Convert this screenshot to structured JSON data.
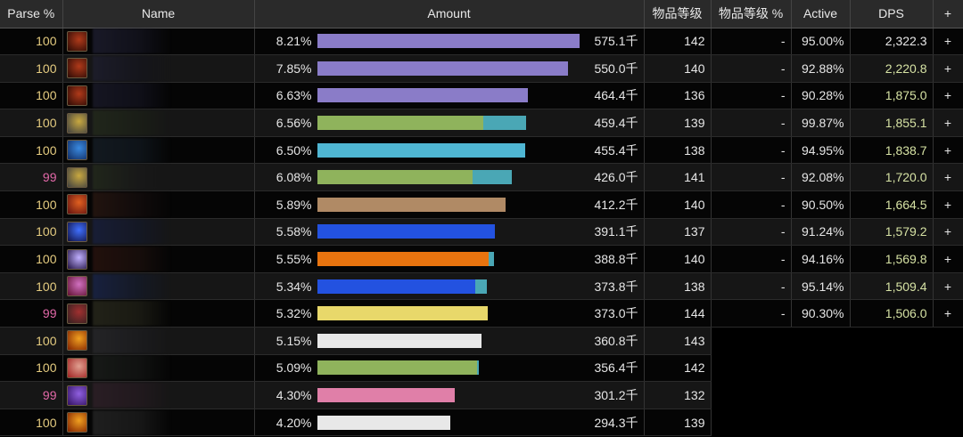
{
  "headers": [
    "Parse %",
    "Name",
    "Amount",
    "物品等级",
    "物品等级 %",
    "Active",
    "DPS",
    "+"
  ],
  "colors": {
    "parse100": "#e5cc80",
    "parse99": "#e268a8",
    "dps": "#d6e2a4"
  },
  "rows": [
    {
      "parse": "100",
      "icon": [
        "#b03a1a",
        "#2a0a05"
      ],
      "name": [
        "#2a2a44",
        "#1a1a2a"
      ],
      "pct": "8.21%",
      "bars": [
        [
          100,
          "#8a7cc8"
        ]
      ],
      "amount": "575.1千",
      "ilvl": "142",
      "ilvl_pct": "-",
      "active": "95.00%",
      "dps": "2,322.3",
      "plus": "+"
    },
    {
      "parse": "100",
      "icon": [
        "#b03a1a",
        "#2a0a05"
      ],
      "name": [
        "#22223a",
        "#151520"
      ],
      "pct": "7.85%",
      "bars": [
        [
          95.6,
          "#8a7cc8"
        ]
      ],
      "amount": "550.0千",
      "ilvl": "140",
      "ilvl_pct": "-",
      "active": "92.88%",
      "dps": "2,220.8",
      "plus": "+"
    },
    {
      "parse": "100",
      "icon": [
        "#b03a1a",
        "#2a0a05"
      ],
      "name": [
        "#24243a",
        "#181828"
      ],
      "pct": "6.63%",
      "bars": [
        [
          80.6,
          "#8a7cc8"
        ]
      ],
      "amount": "464.4千",
      "ilvl": "136",
      "ilvl_pct": "-",
      "active": "90.28%",
      "dps": "1,875.0",
      "plus": "+"
    },
    {
      "parse": "100",
      "icon": [
        "#c8a840",
        "#404040"
      ],
      "name": [
        "#2a3420",
        "#1e2418"
      ],
      "pct": "6.56%",
      "bars": [
        [
          63.6,
          "#8fb35c"
        ],
        [
          16.3,
          "#4aa7b5"
        ]
      ],
      "amount": "459.4千",
      "ilvl": "139",
      "ilvl_pct": "-",
      "active": "99.87%",
      "dps": "1,855.1",
      "plus": "+"
    },
    {
      "parse": "100",
      "icon": [
        "#3a8ae0",
        "#102a60"
      ],
      "name": [
        "#1e2a36",
        "#16202a"
      ],
      "pct": "6.50%",
      "bars": [
        [
          79.3,
          "#4fb6d3"
        ]
      ],
      "amount": "455.4千",
      "ilvl": "138",
      "ilvl_pct": "-",
      "active": "94.95%",
      "dps": "1,838.7",
      "plus": "+"
    },
    {
      "parse": "99",
      "icon": [
        "#c8a840",
        "#404040"
      ],
      "name": [
        "#2a3420",
        "#1a1a1a"
      ],
      "pct": "6.08%",
      "bars": [
        [
          59.2,
          "#8fb35c"
        ],
        [
          15,
          "#4aa7b5"
        ]
      ],
      "amount": "426.0千",
      "ilvl": "141",
      "ilvl_pct": "-",
      "active": "92.08%",
      "dps": "1,720.0",
      "plus": "+"
    },
    {
      "parse": "100",
      "icon": [
        "#e06020",
        "#601010"
      ],
      "name": [
        "#3a2018",
        "#1a1010"
      ],
      "pct": "5.89%",
      "bars": [
        [
          71.8,
          "#b08a65"
        ]
      ],
      "amount": "412.2千",
      "ilvl": "140",
      "ilvl_pct": "-",
      "active": "90.50%",
      "dps": "1,664.5",
      "plus": "+"
    },
    {
      "parse": "100",
      "icon": [
        "#4070ff",
        "#101040"
      ],
      "name": [
        "#1a2450",
        "#141a30"
      ],
      "pct": "5.58%",
      "bars": [
        [
          68,
          "#2352e0"
        ]
      ],
      "amount": "391.1千",
      "ilvl": "137",
      "ilvl_pct": "-",
      "active": "91.24%",
      "dps": "1,579.2",
      "plus": "+"
    },
    {
      "parse": "100",
      "icon": [
        "#c0b0ff",
        "#201040"
      ],
      "name": [
        "#3a1a14",
        "#241410"
      ],
      "pct": "5.55%",
      "bars": [
        [
          65.6,
          "#e8740f"
        ],
        [
          2,
          "#4aa7b5"
        ]
      ],
      "amount": "388.8千",
      "ilvl": "140",
      "ilvl_pct": "-",
      "active": "94.16%",
      "dps": "1,569.8",
      "plus": "+"
    },
    {
      "parse": "100",
      "icon": [
        "#d070c0",
        "#601030"
      ],
      "name": [
        "#1a2a60",
        "#141c30"
      ],
      "pct": "5.34%",
      "bars": [
        [
          60.5,
          "#2352e0"
        ],
        [
          4.4,
          "#4aa7b5"
        ]
      ],
      "amount": "373.8千",
      "ilvl": "138",
      "ilvl_pct": "-",
      "active": "95.14%",
      "dps": "1,509.4",
      "plus": "+"
    },
    {
      "parse": "99",
      "icon": [
        "#a03030",
        "#302020"
      ],
      "name": [
        "#3a3a28",
        "#2a2a1e"
      ],
      "pct": "5.32%",
      "bars": [
        [
          65,
          "#e8d86a"
        ]
      ],
      "amount": "373.0千",
      "ilvl": "144",
      "ilvl_pct": "-",
      "active": "90.30%",
      "dps": "1,506.0",
      "plus": "+"
    },
    {
      "parse": "100",
      "icon": [
        "#f0a020",
        "#802000"
      ],
      "name": [
        "#303034",
        "#202024"
      ],
      "pct": "5.15%",
      "bars": [
        [
          62.6,
          "#e8e8e8"
        ]
      ],
      "amount": "360.8千",
      "ilvl": "143",
      "ilvl_pct": "",
      "active": "",
      "dps": "",
      "plus": ""
    },
    {
      "parse": "100",
      "icon": [
        "#e0a090",
        "#a02020"
      ],
      "name": [
        "#262a26",
        "#1a1c1a"
      ],
      "pct": "5.09%",
      "bars": [
        [
          60.9,
          "#8fb35c"
        ],
        [
          1,
          "#4aa7b5"
        ]
      ],
      "amount": "356.4千",
      "ilvl": "142",
      "ilvl_pct": "",
      "active": "",
      "dps": "",
      "plus": ""
    },
    {
      "parse": "99",
      "icon": [
        "#9060e0",
        "#301060"
      ],
      "name": [
        "#3a2430",
        "#2a1c24"
      ],
      "pct": "4.30%",
      "bars": [
        [
          52.4,
          "#e07fa8"
        ]
      ],
      "amount": "301.2千",
      "ilvl": "132",
      "ilvl_pct": "",
      "active": "",
      "dps": "",
      "plus": ""
    },
    {
      "parse": "100",
      "icon": [
        "#f0a020",
        "#802000"
      ],
      "name": [
        "#343434",
        "#262626"
      ],
      "pct": "4.20%",
      "bars": [
        [
          51,
          "#e8e8e8"
        ]
      ],
      "amount": "294.3千",
      "ilvl": "139",
      "ilvl_pct": "",
      "active": "",
      "dps": "",
      "plus": ""
    }
  ]
}
